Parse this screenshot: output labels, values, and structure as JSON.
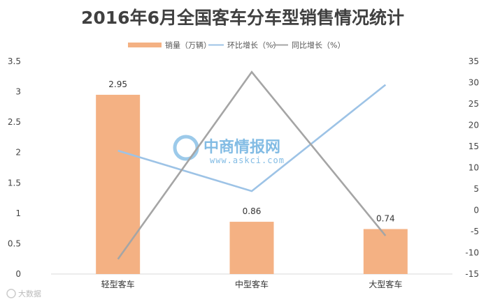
{
  "chart_data": {
    "type": "bar",
    "title": "2016年6月全国客车分车型销售情况统计",
    "categories": [
      "轻型客车",
      "中型客车",
      "大型客车"
    ],
    "y_left": {
      "range": [
        0,
        3.5
      ],
      "ticks": [
        "0",
        "0.5",
        "1",
        "1.5",
        "2",
        "2.5",
        "3",
        "3.5"
      ]
    },
    "y_right": {
      "range": [
        -15,
        35
      ],
      "ticks": [
        "-15",
        "-10",
        "-5",
        "0",
        "5",
        "10",
        "15",
        "20",
        "25",
        "30",
        "35"
      ]
    },
    "series": [
      {
        "name": "销量（万辆）",
        "type": "bar",
        "axis": "left",
        "values": [
          2.95,
          0.86,
          0.74
        ],
        "labels": [
          "2.95",
          "0.86",
          "0.74"
        ]
      },
      {
        "name": "环比增长（%）",
        "type": "line",
        "axis": "right",
        "values": [
          14,
          4.5,
          29.5
        ]
      },
      {
        "name": "同比增长（%）",
        "type": "line",
        "axis": "right",
        "values": [
          -11.5,
          32.5,
          -6
        ]
      }
    ],
    "legend_position": "top",
    "grid": false
  },
  "colors": {
    "bar": "#f4b183",
    "mom": "#9dc3e6",
    "yoy": "#a5a5a5",
    "title": "#404040",
    "watermark": "#5aa6dc"
  },
  "watermark": {
    "brand": "中商情报网",
    "url": "www.askci.com",
    "corner": "大数据"
  }
}
